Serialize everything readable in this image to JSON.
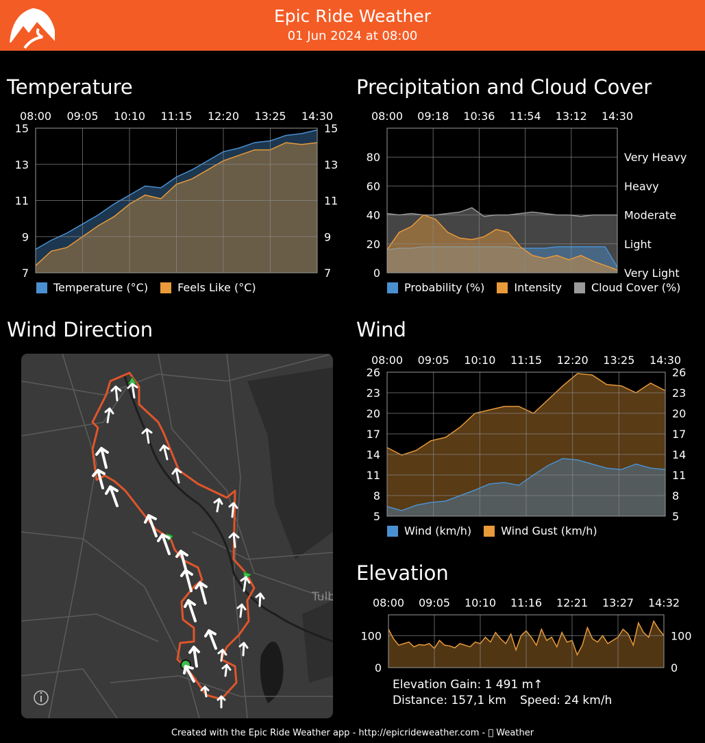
{
  "header": {
    "title": "Epic Ride Weather",
    "subtitle": "01 Jun 2024 at 08:00"
  },
  "footer": {
    "text": "Created with the Epic Ride Weather app - http://epicrideweather.com -  Weather"
  },
  "wind_direction": {
    "title": "Wind Direction",
    "map_label": "Tulb",
    "info_icon": "info-icon"
  },
  "elevation_stats": {
    "gain": "Elevation Gain: 1 491 m↑",
    "distance": "Distance: 157,1 km",
    "speed": "Speed: 24 km/h"
  },
  "colors": {
    "header_bg": "#F45C25",
    "blue": "#4A90D0",
    "orange": "#E99A3A",
    "gray": "#9A9A9A",
    "route": "#E0552B"
  },
  "chart_data": [
    {
      "id": "temperature",
      "type": "area",
      "title": "Temperature",
      "x_ticks": [
        "08:00",
        "09:05",
        "10:10",
        "11:15",
        "12:20",
        "13:25",
        "14:30"
      ],
      "ylim": [
        7,
        15
      ],
      "y_ticks": [
        "15",
        "13",
        "11",
        "9",
        "7"
      ],
      "legend": [
        "Temperature (°C)",
        "Feels Like (°C)"
      ],
      "series": [
        {
          "name": "Temperature (°C)",
          "color": "#4A90D0",
          "values": [
            8.3,
            8.8,
            9.2,
            9.7,
            10.2,
            10.8,
            11.3,
            11.8,
            11.7,
            12.3,
            12.7,
            13.2,
            13.7,
            13.9,
            14.2,
            14.3,
            14.6,
            14.7,
            14.9
          ]
        },
        {
          "name": "Feels Like (°C)",
          "color": "#E99A3A",
          "values": [
            7.4,
            8.2,
            8.4,
            9.0,
            9.6,
            10.1,
            10.8,
            11.3,
            11.1,
            11.9,
            12.2,
            12.7,
            13.2,
            13.5,
            13.8,
            13.8,
            14.2,
            14.1,
            14.2
          ]
        }
      ]
    },
    {
      "id": "precipitation",
      "type": "area",
      "title": "Precipitation and Cloud Cover",
      "x_ticks": [
        "08:00",
        "09:18",
        "10:36",
        "11:54",
        "13:12",
        "14:30"
      ],
      "ylim": [
        0,
        100
      ],
      "y_ticks": [
        "80",
        "60",
        "40",
        "20",
        "0"
      ],
      "right_labels": [
        "Very Heavy",
        "Heavy",
        "Moderate",
        "Light",
        "Very Light"
      ],
      "legend": [
        "Probability (%)",
        "Intensity",
        "Cloud Cover (%)"
      ],
      "series": [
        {
          "name": "Cloud Cover (%)",
          "color": "#9A9A9A",
          "values": [
            41,
            40,
            41,
            40,
            40,
            41,
            42,
            45,
            39,
            40,
            40,
            41,
            42,
            41,
            40,
            40,
            39,
            40,
            40,
            40
          ]
        },
        {
          "name": "Probability (%)",
          "color": "#4A90D0",
          "values": [
            16,
            17,
            17,
            18,
            18,
            18,
            18,
            18,
            18,
            18,
            18,
            17,
            17,
            17,
            18,
            18,
            18,
            18,
            18,
            4
          ]
        },
        {
          "name": "Intensity",
          "color": "#E99A3A",
          "values": [
            16,
            28,
            32,
            40,
            37,
            28,
            24,
            23,
            25,
            30,
            28,
            18,
            12,
            10,
            12,
            9,
            12,
            8,
            5,
            2
          ]
        }
      ]
    },
    {
      "id": "wind",
      "type": "area",
      "title": "Wind",
      "x_ticks": [
        "08:00",
        "09:05",
        "10:10",
        "11:15",
        "12:20",
        "13:25",
        "14:30"
      ],
      "ylim": [
        5,
        26
      ],
      "y_ticks": [
        "26",
        "23",
        "20",
        "17",
        "14",
        "11",
        "8",
        "5"
      ],
      "legend": [
        "Wind (km/h)",
        "Wind Gust (km/h)"
      ],
      "series": [
        {
          "name": "Wind Gust (km/h)",
          "color": "#E99A3A",
          "values": [
            15,
            13.9,
            14.6,
            16,
            16.5,
            18,
            20,
            20.5,
            21,
            21,
            20,
            22,
            24,
            25.8,
            25.6,
            24.2,
            24,
            23,
            24.4,
            23.3
          ]
        },
        {
          "name": "Wind (km/h)",
          "color": "#4A90D0",
          "values": [
            6.4,
            5.8,
            6.6,
            7,
            7.2,
            8,
            8.8,
            9.7,
            9.9,
            9.5,
            11,
            12.4,
            13.4,
            13.2,
            12.6,
            12,
            11.8,
            12.6,
            12,
            11.8
          ]
        }
      ]
    },
    {
      "id": "elevation",
      "type": "area",
      "title": "Elevation",
      "x_ticks": [
        "08:00",
        "09:05",
        "10:10",
        "11:16",
        "12:21",
        "13:27",
        "14:32"
      ],
      "ylim": [
        0,
        165
      ],
      "y_ticks": [
        "100",
        "0"
      ],
      "series": [
        {
          "name": "Elevation",
          "color": "#E99A3A",
          "values": [
            120,
            90,
            70,
            75,
            80,
            65,
            72,
            70,
            75,
            60,
            85,
            70,
            68,
            62,
            75,
            70,
            65,
            80,
            75,
            95,
            80,
            110,
            90,
            75,
            105,
            55,
            100,
            115,
            95,
            70,
            120,
            85,
            95,
            65,
            110,
            80,
            85,
            40,
            70,
            125,
            90,
            80,
            100,
            75,
            85,
            95,
            120,
            105,
            70,
            140,
            110,
            95,
            145,
            120,
            100
          ]
        }
      ]
    }
  ]
}
